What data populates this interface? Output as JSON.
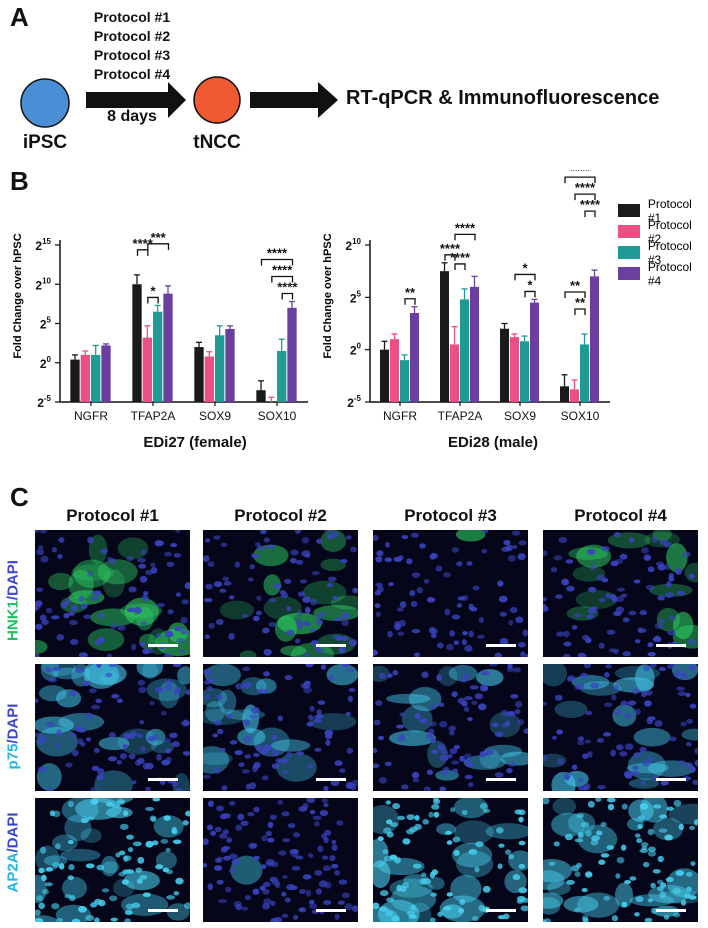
{
  "panel_a": {
    "letter": "A",
    "protocols": [
      "Protocol #1",
      "Protocol #2",
      "Protocol #3",
      "Protocol #4"
    ],
    "start_label": "iPSC",
    "duration_label": "8 days",
    "end_label": "tNCC",
    "readout_label": "RT-qPCR & Immunofluorescence",
    "start_color": "#4a8fd6",
    "end_color": "#f05a32"
  },
  "panel_b": {
    "letter": "B",
    "ylabel": "Fold Change over hPSC",
    "legend": [
      {
        "name": "Protocol #1",
        "color": "#1a1a1a"
      },
      {
        "name": "Protocol #2",
        "color": "#ec4f86"
      },
      {
        "name": "Protocol #3",
        "color": "#1f9a94"
      },
      {
        "name": "Protocol #4",
        "color": "#6a3fa0"
      }
    ]
  },
  "chart_data": [
    {
      "type": "bar",
      "title": "EDi27 (female)",
      "ylabel": "Fold Change over hPSC",
      "log_base": 2,
      "ylim_exp": [
        -5,
        15
      ],
      "y_ticks": [
        {
          "base": "2",
          "exp": "15",
          "v": 15
        },
        {
          "base": "2",
          "exp": "10",
          "v": 10
        },
        {
          "base": "2",
          "exp": "5",
          "v": 5
        },
        {
          "base": "2",
          "exp": "0",
          "v": 0
        },
        {
          "base": "2",
          "exp": "-5",
          "v": -5
        }
      ],
      "categories": [
        "NGFR",
        "TFAP2A",
        "SOX9",
        "SOX10"
      ],
      "series": [
        {
          "name": "Protocol #1",
          "values": [
            0.4,
            10.0,
            2.0,
            -3.5
          ],
          "errors": [
            0.6,
            1.2,
            0.6,
            1.2
          ]
        },
        {
          "name": "Protocol #2",
          "values": [
            1.0,
            3.2,
            0.8,
            -5.0
          ],
          "errors": [
            0.5,
            1.5,
            0.6,
            0.6
          ]
        },
        {
          "name": "Protocol #3",
          "values": [
            1.0,
            6.5,
            3.5,
            1.5
          ],
          "errors": [
            1.2,
            0.8,
            1.2,
            1.5
          ]
        },
        {
          "name": "Protocol #4",
          "values": [
            2.2,
            8.8,
            4.3,
            7.0
          ],
          "errors": [
            0.2,
            1.0,
            0.4,
            0.8
          ]
        }
      ],
      "significance": [
        {
          "cat": 1,
          "from": 0,
          "to": 1,
          "label": "****",
          "level": 1
        },
        {
          "cat": 1,
          "from": 1,
          "to": 2,
          "label": "*",
          "level": 0
        },
        {
          "cat": 1,
          "from": 1,
          "to": 3,
          "label": "***",
          "level": 2
        },
        {
          "cat": 3,
          "from": 0,
          "to": 3,
          "label": "****",
          "level": 2
        },
        {
          "cat": 3,
          "from": 1,
          "to": 3,
          "label": "****",
          "level": 1
        },
        {
          "cat": 3,
          "from": 2,
          "to": 3,
          "label": "****",
          "level": 0
        }
      ]
    },
    {
      "type": "bar",
      "title": "EDi28 (male)",
      "ylabel": "Fold Change over hPSC",
      "log_base": 2,
      "ylim_exp": [
        -5,
        10
      ],
      "y_ticks": [
        {
          "base": "2",
          "exp": "10",
          "v": 10
        },
        {
          "base": "2",
          "exp": "5",
          "v": 5
        },
        {
          "base": "2",
          "exp": "0",
          "v": 0
        },
        {
          "base": "2",
          "exp": "-5",
          "v": -5
        }
      ],
      "categories": [
        "NGFR",
        "TFAP2A",
        "SOX9",
        "SOX10"
      ],
      "series": [
        {
          "name": "Protocol #1",
          "values": [
            0.0,
            7.5,
            2.0,
            -3.5
          ],
          "errors": [
            0.8,
            0.8,
            0.5,
            1.1
          ]
        },
        {
          "name": "Protocol #2",
          "values": [
            1.0,
            0.5,
            1.2,
            -3.8
          ],
          "errors": [
            0.5,
            1.7,
            0.3,
            0.9
          ]
        },
        {
          "name": "Protocol #3",
          "values": [
            -1.0,
            4.8,
            0.8,
            0.5
          ],
          "errors": [
            0.5,
            1.0,
            0.5,
            1.0
          ]
        },
        {
          "name": "Protocol #4",
          "values": [
            3.5,
            6.0,
            4.5,
            7.0
          ],
          "errors": [
            0.6,
            1.0,
            0.3,
            0.6
          ]
        }
      ],
      "significance": [
        {
          "cat": 0,
          "from": 2,
          "to": 3,
          "label": "**",
          "level": 0
        },
        {
          "cat": 1,
          "from": 0,
          "to": 1,
          "label": "****",
          "level": 0
        },
        {
          "cat": 1,
          "from": 1,
          "to": 2,
          "label": "****",
          "level": 1
        },
        {
          "cat": 1,
          "from": 1,
          "to": 3,
          "label": "****",
          "level": 2
        },
        {
          "cat": 2,
          "from": 2,
          "to": 3,
          "label": "*",
          "level": 0
        },
        {
          "cat": 2,
          "from": 1,
          "to": 3,
          "label": "*",
          "level": 1
        },
        {
          "cat": 3,
          "from": 0,
          "to": 2,
          "label": "**",
          "level": 2
        },
        {
          "cat": 3,
          "from": 1,
          "to": 2,
          "label": "**",
          "level": 1
        },
        {
          "cat": 3,
          "from": 2,
          "to": 3,
          "label": "****",
          "level": 3
        },
        {
          "cat": 3,
          "from": 1,
          "to": 3,
          "label": "****",
          "level": 4
        },
        {
          "cat": 3,
          "from": 0,
          "to": 3,
          "label": "****",
          "level": 5
        }
      ]
    }
  ],
  "panel_c": {
    "letter": "C",
    "columns": [
      "Protocol #1",
      "Protocol #2",
      "Protocol #3",
      "Protocol #4"
    ],
    "rows": [
      {
        "marker": "HNK1",
        "counter": "/DAPI",
        "marker_color": "#20c060",
        "counter_color": "#3b46c8",
        "cell_color": "#3a44c0",
        "stain_color": "#2fd064",
        "stain_levels": [
          0.7,
          0.55,
          0.05,
          0.5
        ]
      },
      {
        "marker": "p75",
        "counter": "/DAPI",
        "marker_color": "#22b6e0",
        "counter_color": "#3b46c8",
        "cell_color": "#3a44c0",
        "stain_color": "#44c8ec",
        "stain_levels": [
          0.85,
          0.6,
          0.55,
          0.65
        ]
      },
      {
        "marker": "AP2A",
        "counter": "/DAPI",
        "marker_color": "#22b6e0",
        "counter_color": "#3b46c8",
        "cell_color": "#3a44c0",
        "stain_color": "#48d0f0",
        "stain_levels": [
          0.8,
          0.05,
          0.8,
          0.8
        ]
      }
    ]
  }
}
